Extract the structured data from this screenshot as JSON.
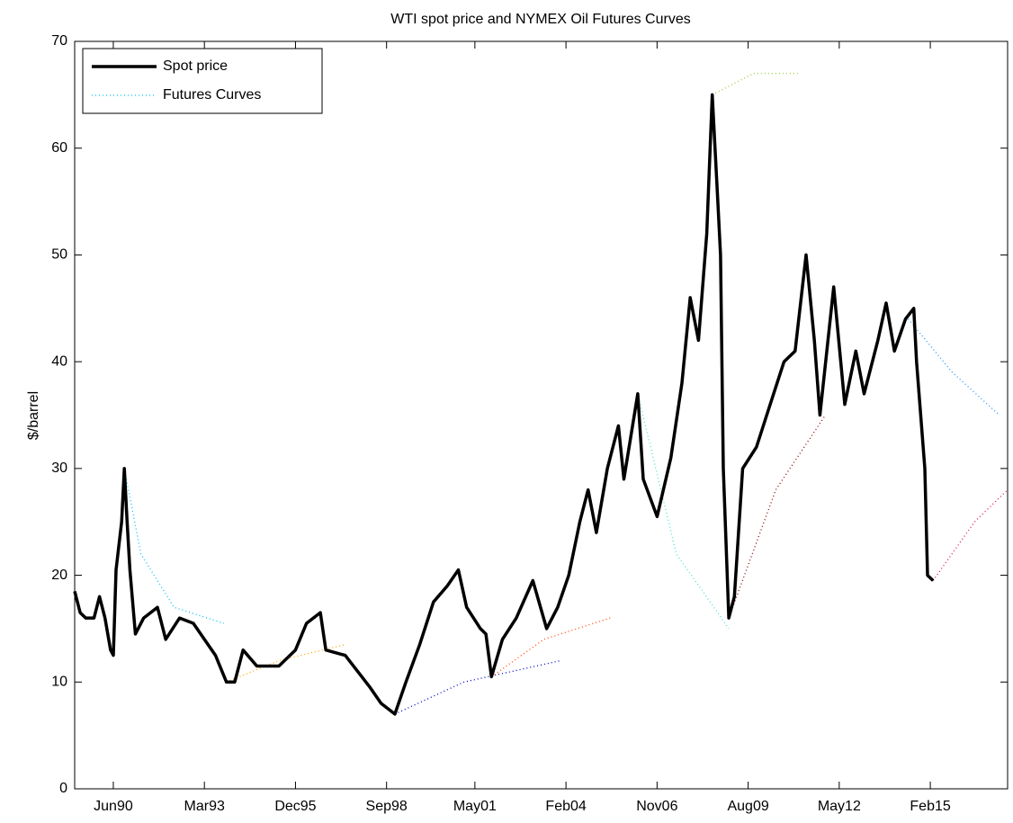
{
  "chart_data": {
    "type": "line",
    "title": "WTI spot price and NYMEX Oil Futures Curves",
    "ylabel": "$/barrel",
    "xlim": [
      "1989-04",
      "2017-06"
    ],
    "xticks": [
      {
        "value": "1990-06",
        "label": "Jun90"
      },
      {
        "value": "1993-03",
        "label": "Mar93"
      },
      {
        "value": "1995-12",
        "label": "Dec95"
      },
      {
        "value": "1998-09",
        "label": "Sep98"
      },
      {
        "value": "2001-05",
        "label": "May01"
      },
      {
        "value": "2004-02",
        "label": "Feb04"
      },
      {
        "value": "2006-11",
        "label": "Nov06"
      },
      {
        "value": "2009-08",
        "label": "Aug09"
      },
      {
        "value": "2012-05",
        "label": "May12"
      },
      {
        "value": "2015-02",
        "label": "Feb15"
      }
    ],
    "ylim": [
      0,
      70
    ],
    "yticks": [
      0,
      10,
      20,
      30,
      40,
      50,
      60,
      70
    ],
    "grid": false,
    "legend": "upper-left",
    "series": [
      {
        "name": "Spot price",
        "color": "#000000",
        "x": [
          "1989-04",
          "1989-06",
          "1989-08",
          "1989-11",
          "1990-01",
          "1990-03",
          "1990-05",
          "1990-06",
          "1990-07",
          "1990-09",
          "1990-10",
          "1990-11",
          "1990-12",
          "1991-02",
          "1991-05",
          "1991-10",
          "1992-01",
          "1992-06",
          "1992-11",
          "1993-07",
          "1993-11",
          "1994-02",
          "1994-05",
          "1994-10",
          "1995-06",
          "1995-12",
          "1996-04",
          "1996-09",
          "1996-11",
          "1997-06",
          "1998-03",
          "1998-07",
          "1998-12",
          "1999-04",
          "1999-09",
          "2000-02",
          "2000-07",
          "2000-11",
          "2001-02",
          "2001-07",
          "2001-09",
          "2001-11",
          "2002-03",
          "2002-08",
          "2003-02",
          "2003-07",
          "2003-11",
          "2004-03",
          "2004-07",
          "2004-10",
          "2005-01",
          "2005-05",
          "2005-09",
          "2005-11",
          "2006-04",
          "2006-06",
          "2006-11",
          "2007-04",
          "2007-08",
          "2007-11",
          "2008-02",
          "2008-05",
          "2008-07",
          "2008-09",
          "2008-10",
          "2008-11",
          "2009-01",
          "2009-03",
          "2009-06",
          "2009-11",
          "2010-04",
          "2010-09",
          "2011-01",
          "2011-05",
          "2011-08",
          "2011-10",
          "2012-03",
          "2012-07",
          "2012-11",
          "2013-02",
          "2013-07",
          "2013-10",
          "2014-01",
          "2014-05",
          "2014-08",
          "2014-09",
          "2014-12",
          "2015-01",
          "2015-03"
        ],
        "values": [
          18.5,
          16.5,
          16,
          16,
          18,
          16,
          13,
          12.5,
          20.5,
          25,
          30,
          25,
          20.5,
          14.5,
          16,
          17,
          14,
          16,
          15.5,
          12.5,
          10,
          10,
          13,
          11.5,
          11.5,
          13,
          15.5,
          16.5,
          13,
          12.5,
          9.5,
          8,
          7,
          10,
          13.5,
          17.5,
          19,
          20.5,
          17,
          15,
          14.5,
          10.5,
          14,
          16,
          19.5,
          15,
          17,
          20,
          25,
          28,
          24,
          30,
          34,
          29,
          37,
          29,
          25.5,
          31,
          38,
          46,
          42,
          52,
          65,
          55,
          50,
          30,
          16,
          18,
          30,
          32,
          36,
          40,
          41,
          50,
          42,
          35,
          47,
          36,
          41,
          37,
          42,
          45.5,
          41,
          44,
          45,
          40,
          30,
          20,
          19.5
        ]
      },
      {
        "name": "Futures Curves",
        "curves": [
          {
            "color": "#00bfff",
            "x": [
              "1990-10",
              "1991-04",
              "1992-04",
              "1993-10"
            ],
            "values": [
              30,
              22,
              17,
              15.5
            ]
          },
          {
            "color": "#ffa500",
            "x": [
              "1993-11",
              "1995-06",
              "1997-06"
            ],
            "values": [
              10,
              12,
              13.5
            ]
          },
          {
            "color": "#0000cd",
            "x": [
              "1998-12",
              "2001-01",
              "2003-12"
            ],
            "values": [
              7,
              10,
              12
            ]
          },
          {
            "color": "#ff4500",
            "x": [
              "2001-11",
              "2003-06",
              "2005-06"
            ],
            "values": [
              10.5,
              14,
              16
            ]
          },
          {
            "color": "#40e0d0",
            "x": [
              "2006-04",
              "2007-06",
              "2009-01"
            ],
            "values": [
              37,
              22,
              15
            ]
          },
          {
            "color": "#9acd32",
            "x": [
              "2008-07",
              "2009-10",
              "2011-03"
            ],
            "values": [
              65,
              67,
              67
            ]
          },
          {
            "color": "#8b0000",
            "x": [
              "2009-01",
              "2010-06",
              "2011-12"
            ],
            "values": [
              16,
              28,
              35
            ]
          },
          {
            "color": "#1e90ff",
            "x": [
              "2014-06",
              "2015-10",
              "2017-03"
            ],
            "values": [
              44,
              39,
              35
            ]
          },
          {
            "color": "#dc143c",
            "x": [
              "2015-03",
              "2016-06",
              "2017-06"
            ],
            "values": [
              19.5,
              25,
              28
            ]
          }
        ]
      }
    ]
  }
}
